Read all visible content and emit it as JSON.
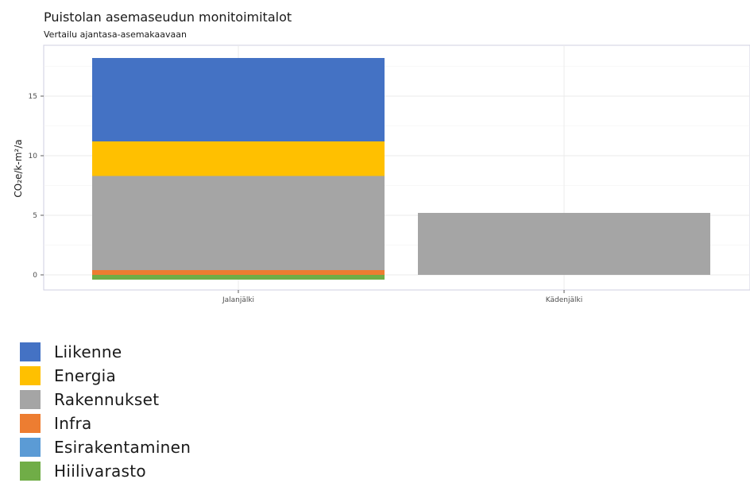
{
  "title": "Puistolan asemaseudun monitoimitalot",
  "subtitle": "Vertailu ajantasa-asemakaavaan",
  "chart_data": {
    "type": "bar",
    "stacked": true,
    "title": "Puistolan asemaseudun monitoimitalot",
    "subtitle": "Vertailu ajantasa-asemakaavaan",
    "xlabel": "",
    "ylabel": "CO₂e/k-m²/a",
    "categories": [
      "Jalanjälki",
      "Kädenjälki"
    ],
    "ylim": [
      -0.6,
      18.9
    ],
    "yticks": [
      0,
      5,
      10,
      15
    ],
    "grid": true,
    "legend_position": "bottom-left",
    "series": [
      {
        "name": "Liikenne",
        "color": "#4472c4",
        "values": [
          7.0,
          0
        ]
      },
      {
        "name": "Energia",
        "color": "#ffc000",
        "values": [
          2.9,
          0
        ]
      },
      {
        "name": "Rakennukset",
        "color": "#a5a5a5",
        "values": [
          7.9,
          5.2
        ]
      },
      {
        "name": "Infra",
        "color": "#ed7d31",
        "values": [
          0.4,
          0
        ]
      },
      {
        "name": "Esirakentaminen",
        "color": "#5b9bd5",
        "values": [
          0,
          0
        ]
      },
      {
        "name": "Hiilivarasto",
        "color": "#70ad47",
        "values": [
          -0.4,
          0
        ]
      }
    ]
  }
}
